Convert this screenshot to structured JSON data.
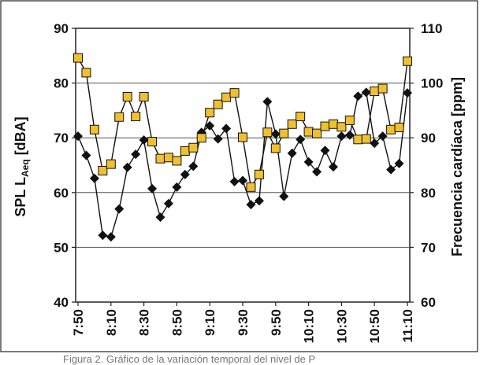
{
  "chart_data": {
    "type": "line",
    "title": "",
    "x": [
      "7:50",
      "7:55",
      "8:00",
      "8:05",
      "8:10",
      "8:15",
      "8:20",
      "8:25",
      "8:30",
      "8:35",
      "8:40",
      "8:45",
      "8:50",
      "8:55",
      "9:00",
      "9:05",
      "9:10",
      "9:15",
      "9:20",
      "9:25",
      "9:30",
      "9:35",
      "9:40",
      "9:45",
      "9:50",
      "9:55",
      "10:00",
      "10:05",
      "10:10",
      "10:15",
      "10:20",
      "10:25",
      "10:30",
      "10:35",
      "10:40",
      "10:45",
      "10:50",
      "10:55",
      "11:00",
      "11:05",
      "11:10"
    ],
    "x_tick_labels": [
      "7:50",
      "8:10",
      "8:30",
      "8:50",
      "9:10",
      "9:30",
      "9:50",
      "10:10",
      "10:30",
      "10:50",
      "11:10"
    ],
    "y_left": {
      "label_main": "SPL L",
      "label_sub": "Aeq",
      "label_unit": " [dBA]",
      "range": [
        40,
        90
      ],
      "ticks": [
        "40",
        "50",
        "60",
        "70",
        "80",
        "90"
      ]
    },
    "y_right": {
      "label": "Frecuencia cardíaca [ppm]",
      "range": [
        60,
        110
      ],
      "ticks": [
        "60",
        "70",
        "80",
        "90",
        "100",
        "110"
      ]
    },
    "grid": true,
    "series": [
      {
        "axis": "left",
        "marker": "diamond",
        "color": "#111111",
        "values": [
          70.3,
          66.8,
          62.6,
          52.2,
          51.9,
          57.0,
          64.6,
          67.0,
          69.6,
          60.7,
          55.5,
          58.0,
          61.0,
          63.3,
          64.8,
          71.0,
          72.2,
          69.8,
          71.7,
          62.0,
          62.2,
          57.8,
          58.5,
          76.6,
          70.7,
          59.3,
          67.2,
          69.7,
          65.6,
          63.8,
          67.7,
          64.7,
          70.3,
          70.5,
          77.6,
          78.3,
          69.0,
          70.3,
          64.2,
          65.3,
          78.2
        ]
      },
      {
        "axis": "right",
        "marker": "square",
        "color": "#f0c030",
        "values": [
          104.6,
          101.9,
          91.5,
          84.0,
          85.2,
          93.8,
          97.5,
          93.9,
          97.5,
          89.3,
          86.2,
          86.4,
          85.8,
          87.6,
          88.2,
          90.0,
          94.6,
          96.1,
          97.4,
          98.2,
          90.1,
          81.0,
          83.3,
          91.0,
          88.1,
          90.8,
          92.5,
          93.9,
          91.1,
          90.8,
          92.1,
          92.5,
          92.0,
          93.2,
          89.7,
          89.8,
          98.5,
          99.0,
          91.5,
          91.9,
          104.0
        ]
      }
    ]
  },
  "caption": "Figura 2. Gráfico de la variación temporal del nivel de P"
}
